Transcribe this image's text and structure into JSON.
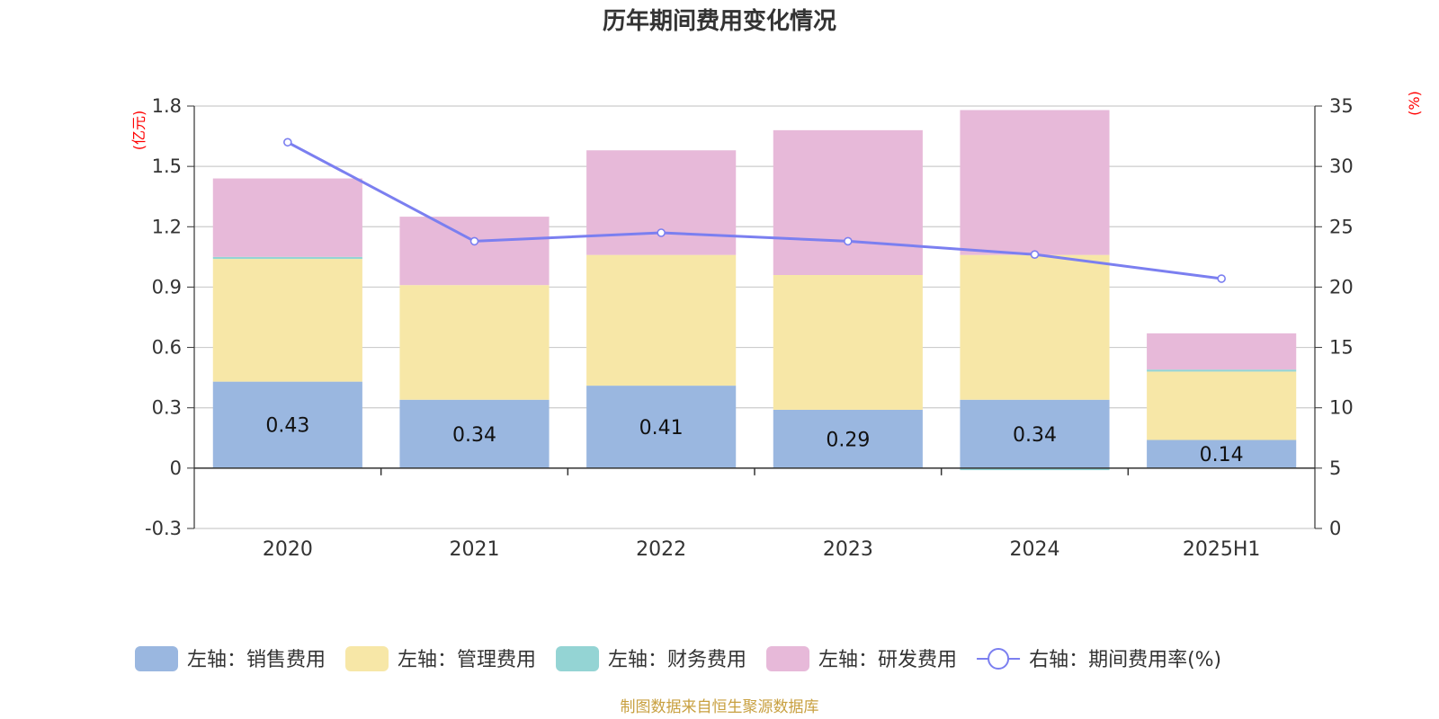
{
  "chart_data": {
    "type": "bar",
    "title": "历年期间费用变化情况",
    "categories": [
      "2020",
      "2021",
      "2022",
      "2023",
      "2024",
      "2025H1"
    ],
    "left_axis": {
      "unit": "(亿元)",
      "ylim": [
        -0.3,
        1.8
      ],
      "ticks": [
        -0.3,
        0,
        0.3,
        0.6,
        0.9,
        1.2,
        1.5,
        1.8
      ],
      "tick_labels": [
        "-0.3",
        "0",
        "0.3",
        "0.6",
        "0.9",
        "1.2",
        "1.5",
        "1.8"
      ]
    },
    "right_axis": {
      "unit": "(%)",
      "ylim": [
        0,
        35
      ],
      "ticks": [
        0,
        5,
        10,
        15,
        20,
        25,
        30,
        35
      ],
      "tick_labels": [
        "0",
        "5",
        "10",
        "15",
        "20",
        "25",
        "30",
        "35"
      ]
    },
    "series": [
      {
        "name": "左轴：销售费用",
        "type": "bar",
        "axis": "left",
        "color": "#9ab7e0",
        "values": [
          0.43,
          0.34,
          0.41,
          0.29,
          0.34,
          0.14
        ],
        "labels": [
          "0.43",
          "0.34",
          "0.41",
          "0.29",
          "0.34",
          "0.14"
        ]
      },
      {
        "name": "左轴：管理费用",
        "type": "bar",
        "axis": "left",
        "color": "#f7e7a7",
        "values": [
          0.61,
          0.57,
          0.65,
          0.67,
          0.72,
          0.34
        ]
      },
      {
        "name": "左轴：财务费用",
        "type": "bar",
        "axis": "left",
        "color": "#94d4d4",
        "values": [
          0.01,
          0.0,
          0.0,
          0.0,
          -0.01,
          0.01
        ]
      },
      {
        "name": "左轴：研发费用",
        "type": "bar",
        "axis": "left",
        "color": "#e7b9d9",
        "values": [
          0.39,
          0.34,
          0.52,
          0.72,
          0.72,
          0.18
        ]
      },
      {
        "name": "右轴：期间费用率(%)",
        "type": "line",
        "axis": "right",
        "color": "#7b7ff0",
        "values": [
          32.0,
          23.8,
          24.5,
          23.8,
          22.7,
          20.7
        ]
      }
    ],
    "grid": true,
    "legend_position": "bottom"
  },
  "source_text": "制图数据来自恒生聚源数据库"
}
